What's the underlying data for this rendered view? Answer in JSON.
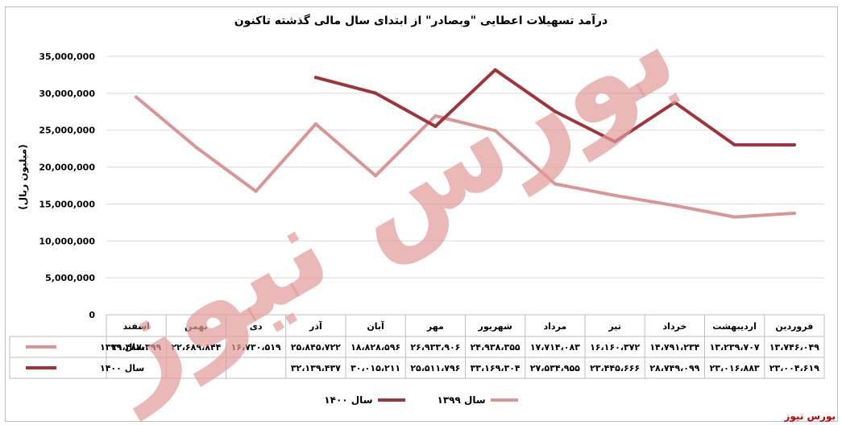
{
  "title": "درآمد تسهیلات اعطایی \"وبصادر\" از ابتدای سال مالی گذشته تاکنون",
  "brand": "بورس نیوز",
  "colors": {
    "s1399": "#d99694",
    "s1400": "#a0343a",
    "watermark": "#e39a9a"
  },
  "chart_data": {
    "type": "line",
    "ylabel": "(میلیون ریال)",
    "ylim": [
      0,
      35000000
    ],
    "yticks": [
      {
        "v": 0,
        "label": "0"
      },
      {
        "v": 5000000,
        "label": "5,000,000"
      },
      {
        "v": 10000000,
        "label": "10,000,000"
      },
      {
        "v": 15000000,
        "label": "15,000,000"
      },
      {
        "v": 20000000,
        "label": "20,000,000"
      },
      {
        "v": 25000000,
        "label": "25,000,000"
      },
      {
        "v": 30000000,
        "label": "30,000,000"
      },
      {
        "v": 35000000,
        "label": "35,000,000"
      }
    ],
    "categories": [
      "فروردین",
      "اردیبهشت",
      "خرداد",
      "تیر",
      "مرداد",
      "شهریور",
      "مهر",
      "آبان",
      "آذر",
      "دی",
      "بهمن",
      "اسفند"
    ],
    "series": [
      {
        "name": "سال ۱۳۹۹",
        "values": [
          13746049,
          13239707,
          14791234,
          16160372,
          17714083,
          24938355,
          26933906,
          18828596,
          25845722,
          16730519,
          22689844,
          29487399
        ],
        "labels": [
          "۱۳،۷۴۶،۰۴۹",
          "۱۳،۲۳۹،۷۰۷",
          "۱۴،۷۹۱،۲۳۴",
          "۱۶،۱۶۰،۳۷۲",
          "۱۷،۷۱۴،۰۸۳",
          "۲۴،۹۳۸،۳۵۵",
          "۲۶،۹۳۳،۹۰۶",
          "۱۸،۸۲۸،۵۹۶",
          "۲۵،۸۴۵،۷۲۲",
          "۱۶،۷۳۰،۵۱۹",
          "۲۲،۶۸۹،۸۴۴",
          "۲۹،۴۸۷،۳۹۹"
        ]
      },
      {
        "name": "سال ۱۴۰۰",
        "values": [
          23004619,
          23016883,
          28749099,
          23445666,
          27534955,
          33169304,
          25511796,
          30015211,
          32139437,
          null,
          null,
          null
        ],
        "labels": [
          "۲۳،۰۰۴،۶۱۹",
          "۲۳،۰۱۶،۸۸۳",
          "۲۸،۷۴۹،۰۹۹",
          "۲۳،۴۴۵،۶۶۶",
          "۲۷،۵۳۴،۹۵۵",
          "۳۳،۱۶۹،۳۰۴",
          "۲۵،۵۱۱،۷۹۶",
          "۳۰،۰۱۵،۲۱۱",
          "۳۲،۱۳۹،۴۳۷",
          "",
          "",
          ""
        ]
      }
    ],
    "grid": true,
    "legend_position": "bottom"
  }
}
